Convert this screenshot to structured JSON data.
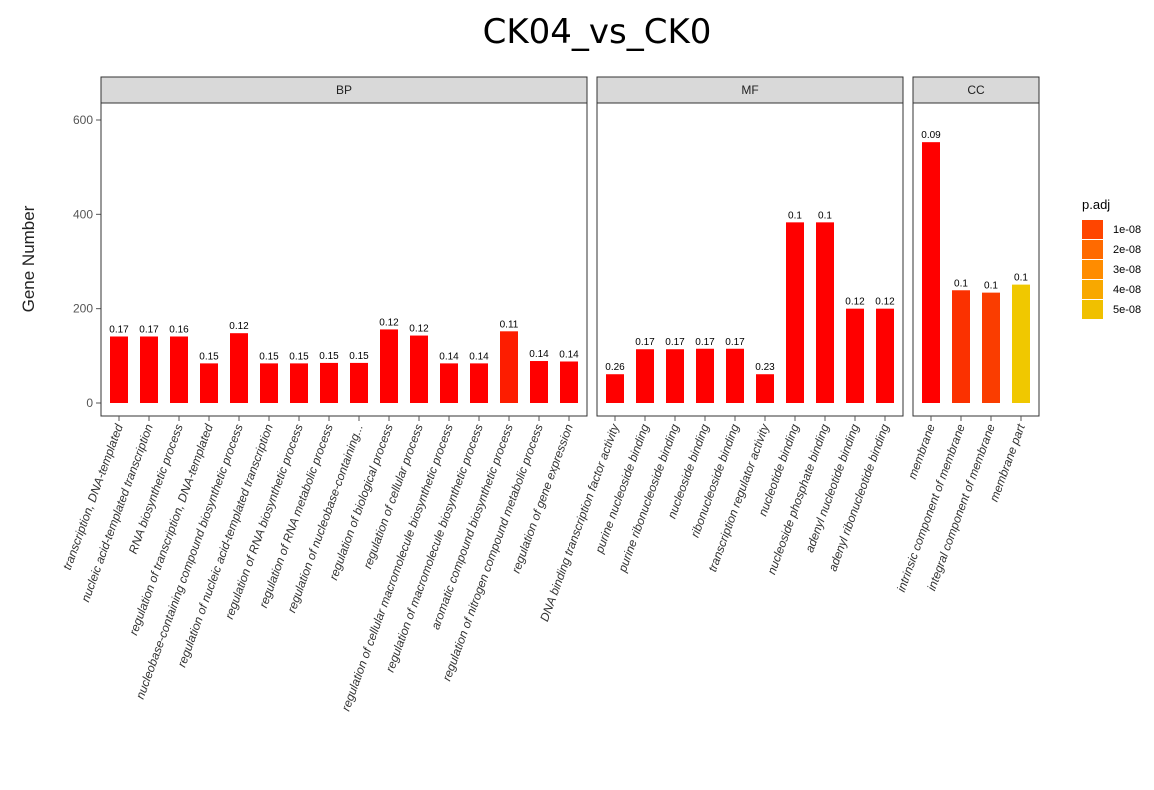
{
  "chart_data": {
    "type": "bar",
    "title": "CK04_vs_CK0",
    "ylabel": "Gene Number",
    "xlabel": "",
    "ylim": [
      0,
      600
    ],
    "yticks": [
      0,
      200,
      400,
      600
    ],
    "facets": [
      {
        "name": "BP",
        "categories": [
          "transcription, DNA-templated",
          "nucleic acid-templated transcription",
          "RNA biosynthetic process",
          "regulation of transcription, DNA-templated",
          "nucleobase-containing compound biosynthetic process",
          "regulation of nucleic acid-templated transcription",
          "regulation of RNA biosynthetic process",
          "regulation of RNA metabolic process",
          "regulation of nucleobase-containing...",
          "regulation of biological process",
          "regulation of cellular process",
          "regulation of cellular macromolecule biosynthetic process",
          "regulation of macromolecule biosynthetic process",
          "aromatic compound biosynthetic process",
          "regulation of nitrogen compound metabolic process",
          "regulation of gene expression"
        ],
        "values": [
          141,
          141,
          141,
          84,
          148,
          84,
          84,
          85,
          85,
          156,
          143,
          84,
          84,
          152,
          89,
          88
        ],
        "labels": [
          "0.17",
          "0.17",
          "0.16",
          "0.15",
          "0.12",
          "0.15",
          "0.15",
          "0.15",
          "0.15",
          "0.12",
          "0.12",
          "0.14",
          "0.14",
          "0.11",
          "0.14",
          "0.14"
        ],
        "padj": [
          1e-09,
          1e-09,
          1e-09,
          1e-09,
          1e-09,
          1e-09,
          1e-09,
          1e-09,
          1e-09,
          1e-09,
          1e-09,
          1e-09,
          1e-09,
          8e-09,
          1e-09,
          1e-09
        ]
      },
      {
        "name": "MF",
        "categories": [
          "DNA binding transcription factor activity",
          "purine nucleoside binding",
          "purine ribonucleoside binding",
          "nucleoside binding",
          "ribonucleoside binding",
          "transcription regulator activity",
          "nucleotide binding",
          "nucleoside phosphate binding",
          "adenyl nucleotide binding",
          "adenyl ribonucleotide binding"
        ],
        "values": [
          61,
          114,
          114,
          115,
          115,
          61,
          383,
          383,
          200,
          200
        ],
        "labels": [
          "0.26",
          "0.17",
          "0.17",
          "0.17",
          "0.17",
          "0.23",
          "0.1",
          "0.1",
          "0.12",
          "0.12"
        ],
        "padj": [
          1e-09,
          1e-09,
          1e-09,
          1e-09,
          1e-09,
          1e-09,
          1e-09,
          1e-09,
          1e-09,
          1e-09
        ]
      },
      {
        "name": "CC",
        "categories": [
          "membrane",
          "intrinsic component of membrane",
          "integral component of membrane",
          "membrane part"
        ],
        "values": [
          553,
          239,
          234,
          251
        ],
        "labels": [
          "0.09",
          "0.1",
          "0.1",
          "0.1"
        ],
        "padj": [
          1e-09,
          1.3e-08,
          1.6e-08,
          5e-08
        ]
      }
    ],
    "legend": {
      "title": "p.adj",
      "position": "right",
      "entries": [
        "1e-08",
        "2e-08",
        "3e-08",
        "4e-08",
        "5e-08"
      ],
      "colors": [
        "#FF4500",
        "#FF6A00",
        "#FF8C00",
        "#F8A800",
        "#F0C000"
      ]
    },
    "bar_color_low": "#FF0000",
    "bar_color_high": "#F0C800",
    "panel_border": "#333333",
    "strip_fill": "#D9D9D9"
  }
}
